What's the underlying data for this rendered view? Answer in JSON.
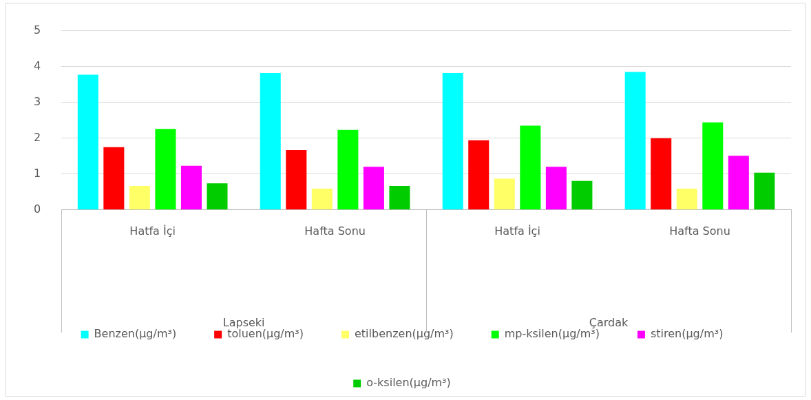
{
  "chart_data": {
    "type": "bar",
    "categories": [
      "Hatfa İçi",
      "Hafta Sonu",
      "Hatfa İçi",
      "Hafta Sonu"
    ],
    "series": [
      {
        "name": "Benzen(µg/m³)",
        "color": "#00ffff",
        "values": [
          3.77,
          3.82,
          3.82,
          3.85
        ]
      },
      {
        "name": "toluen(µg/m³)",
        "color": "#ff0000",
        "values": [
          1.75,
          1.67,
          1.94,
          2.0
        ]
      },
      {
        "name": "etilbenzen(µg/m³)",
        "color": "#ffff66",
        "values": [
          0.67,
          0.59,
          0.87,
          0.59
        ]
      },
      {
        "name": "mp-ksilen(µg/m³)",
        "color": "#00ff00",
        "values": [
          2.26,
          2.23,
          2.35,
          2.44
        ]
      },
      {
        "name": "stiren(µg/m³)",
        "color": "#ff00ff",
        "values": [
          1.23,
          1.2,
          1.2,
          1.51
        ]
      },
      {
        "name": "o-ksilen(µg/m³)",
        "color": "#00cc00",
        "values": [
          0.74,
          0.67,
          0.81,
          1.04
        ]
      }
    ],
    "annotations": [
      "Lapseki",
      "Çardak"
    ],
    "ylim": [
      0,
      5
    ],
    "yticks": [
      0,
      1,
      2,
      3,
      4,
      5
    ],
    "grid": "y",
    "legend": "bottom"
  }
}
